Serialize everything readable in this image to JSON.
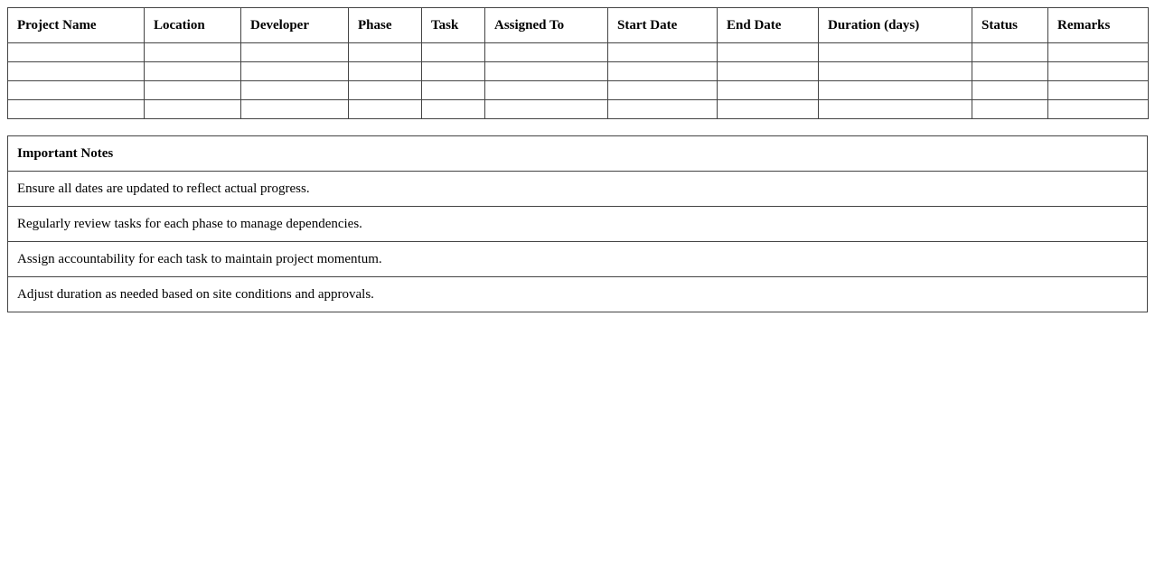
{
  "schedule": {
    "columns": [
      "Project Name",
      "Location",
      "Developer",
      "Phase",
      "Task",
      "Assigned To",
      "Start Date",
      "End Date",
      "Duration (days)",
      "Status",
      "Remarks"
    ],
    "rows": [
      [
        "",
        "",
        "",
        "",
        "",
        "",
        "",
        "",
        "",
        "",
        ""
      ],
      [
        "",
        "",
        "",
        "",
        "",
        "",
        "",
        "",
        "",
        "",
        ""
      ],
      [
        "",
        "",
        "",
        "",
        "",
        "",
        "",
        "",
        "",
        "",
        ""
      ],
      [
        "",
        "",
        "",
        "",
        "",
        "",
        "",
        "",
        "",
        "",
        ""
      ]
    ]
  },
  "notes": {
    "title": "Important Notes",
    "items": [
      "Ensure all dates are updated to reflect actual progress.",
      "Regularly review tasks for each phase to manage dependencies.",
      "Assign accountability for each task to maintain project momentum.",
      "Adjust duration as needed based on site conditions and approvals."
    ]
  }
}
